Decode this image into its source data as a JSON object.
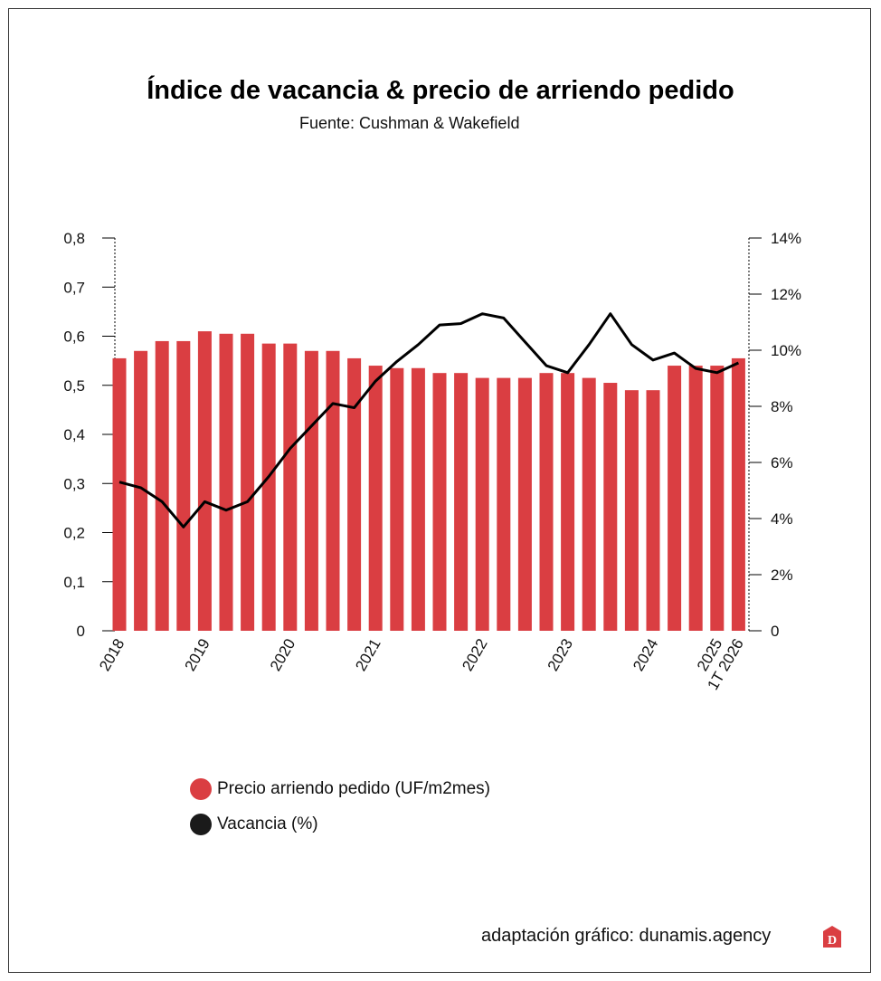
{
  "chart_data": {
    "type": "bar+line",
    "title": "Índice de vacancia & precio de arriendo pedido",
    "subtitle": "Fuente: Cushman & Wakefield",
    "x_labels": [
      "2018",
      "",
      "",
      "",
      "2019",
      "",
      "",
      "",
      "2020",
      "",
      "",
      "",
      "2021",
      "",
      "",
      "",
      "",
      "2022",
      "",
      "",
      "",
      "2023",
      "",
      "",
      "",
      "2024",
      "",
      "",
      "2025",
      "1T 2026"
    ],
    "left_axis": {
      "ylim": [
        0,
        0.8
      ],
      "ticks": [
        "0",
        "0,1",
        "0,2",
        "0,3",
        "0,4",
        "0,5",
        "0,6",
        "0,7",
        "0,8"
      ]
    },
    "right_axis": {
      "ylim": [
        0,
        14
      ],
      "ticks": [
        "0",
        "2%",
        "4%",
        "6%",
        "8%",
        "10%",
        "12%",
        "14%"
      ]
    },
    "series": [
      {
        "name": "Precio arriendo pedido (UF/m2mes)",
        "type": "bar",
        "color": "#da3e42",
        "axis": "left",
        "values": [
          0.555,
          0.57,
          0.59,
          0.59,
          0.61,
          0.605,
          0.605,
          0.585,
          0.585,
          0.57,
          0.57,
          0.555,
          0.54,
          0.535,
          0.535,
          0.525,
          0.525,
          0.515,
          0.515,
          0.515,
          0.525,
          0.525,
          0.515,
          0.505,
          0.49,
          0.49,
          0.54,
          0.54,
          0.54,
          0.555
        ]
      },
      {
        "name": "Vacancia (%)",
        "type": "line",
        "color": "#000000",
        "axis": "right",
        "values": [
          5.3,
          5.1,
          4.6,
          3.7,
          4.6,
          4.3,
          4.6,
          5.5,
          6.5,
          7.3,
          8.1,
          7.95,
          8.9,
          9.6,
          10.2,
          10.9,
          10.95,
          11.3,
          11.15,
          10.3,
          9.45,
          9.2,
          10.2,
          11.3,
          10.2,
          9.65,
          9.9,
          9.35,
          9.2,
          9.55
        ]
      }
    ],
    "legend_position": "bottom-left"
  },
  "credit": "adaptación gráfico: dunamis.agency",
  "logo_letter": "D"
}
